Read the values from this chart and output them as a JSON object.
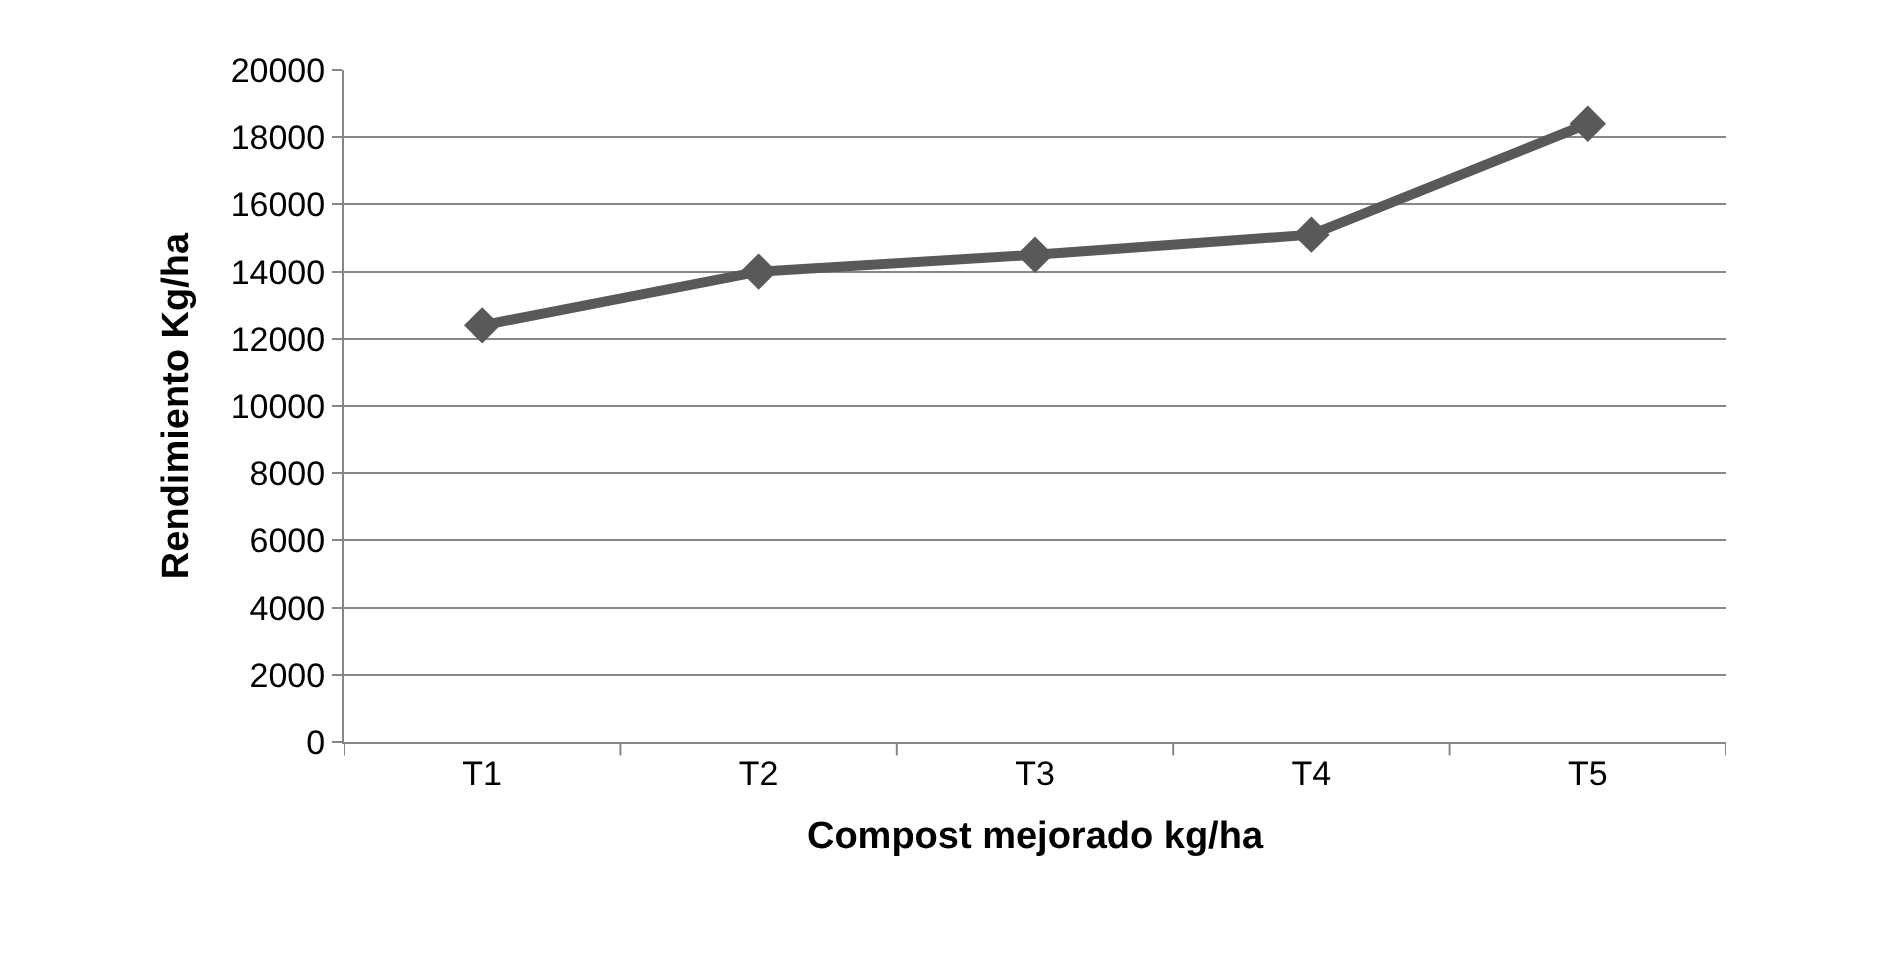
{
  "chart_data": {
    "type": "line",
    "xlabel": "Compost mejorado kg/ha",
    "ylabel": "Rendimiento Kg/ha",
    "categories": [
      "T1",
      "T2",
      "T3",
      "T4",
      "T5"
    ],
    "series": [
      {
        "color": "#595959",
        "values": [
          12400,
          14000,
          14500,
          15100,
          18400
        ]
      }
    ],
    "ylim": [
      0,
      20000
    ],
    "yticks": [
      0,
      2000,
      4000,
      6000,
      8000,
      10000,
      12000,
      14000,
      16000,
      18000,
      20000
    ],
    "grid": "y",
    "marker": "diamond",
    "line_style": "solid"
  }
}
